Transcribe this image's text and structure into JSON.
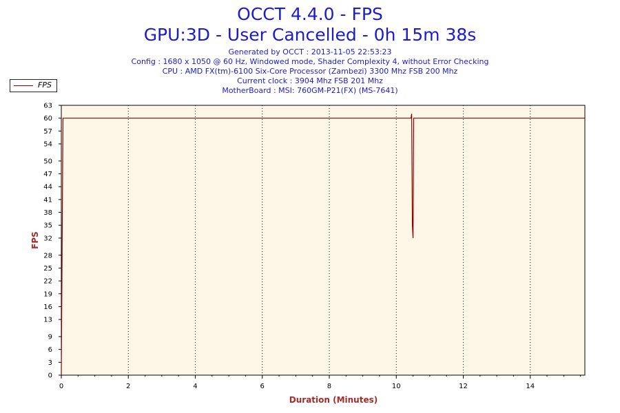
{
  "header": {
    "title": "OCCT 4.4.0 - FPS",
    "subtitle": "GPU:3D - User Cancelled - 0h 15m 38s",
    "generated": "Generated by OCCT : 2013-11-05 22:53:23",
    "config": "Config : 1680 x 1050 @ 60 Hz, Windowed mode, Shader Complexity 4, without Error Checking",
    "cpu": "CPU : AMD FX(tm)-6100 Six-Core Processor (Zambezi) 3300 Mhz FSB 200 Mhz",
    "clock": "Current clock : 3904 Mhz FSB 201 Mhz",
    "motherboard": "MotherBoard : MSI: 760GM-P21(FX) (MS-7641)"
  },
  "legend": {
    "label": "FPS"
  },
  "colors": {
    "line": "#8b0000",
    "plot_bg": "#fef7e8",
    "title": "#1a1ad6",
    "axis_label": "#a52a2a"
  },
  "chart_data": {
    "type": "line",
    "title": "OCCT 4.4.0 - FPS",
    "xlabel": "Duration (Minutes)",
    "ylabel": "FPS",
    "xlim": [
      0,
      15.63
    ],
    "ylim": [
      0,
      63
    ],
    "x_ticks": [
      0,
      2,
      4,
      6,
      8,
      10,
      12,
      14
    ],
    "y_ticks": [
      0,
      3,
      6,
      9,
      13,
      16,
      19,
      22,
      25,
      28,
      32,
      35,
      38,
      41,
      44,
      47,
      50,
      54,
      57,
      60,
      63
    ],
    "grid": "vertical dotted",
    "legend_position": "top-left",
    "series": [
      {
        "name": "FPS",
        "x": [
          0,
          0.05,
          10.44,
          10.46,
          10.48,
          10.5,
          10.52,
          10.54,
          15.63
        ],
        "y": [
          0,
          60,
          60,
          61,
          35,
          32,
          60,
          60,
          60
        ]
      }
    ]
  }
}
